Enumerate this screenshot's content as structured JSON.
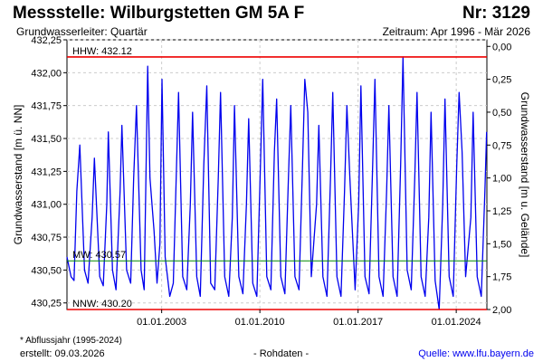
{
  "header": {
    "title": "Messstelle: Wilburgstetten GM 5A F",
    "number": "Nr: 3129",
    "aquifer": "Grundwasserleiter: Quartär",
    "period": "Zeitraum: Apr 1996 - Mär 2026"
  },
  "footer": {
    "footnote": "* Abflussjahr (1995-2024)",
    "created": "erstellt:  09.03.2026",
    "data_type": "- Rohdaten -",
    "source": "Quelle: www.lfu.bayern.de"
  },
  "colors": {
    "series": "#0000ee",
    "hhw": "#ee0000",
    "nnw": "#ee0000",
    "mw": "#008800",
    "grid": "#cccccc"
  },
  "chart_data": {
    "type": "line",
    "ylabel": "Grundwasserstand [m ü. NN]",
    "ylabel_right": "Grundwasserstand [m u. Gelände]",
    "ylim": [
      430.2,
      432.25
    ],
    "y_ticks": [
      "432,25",
      "432,00",
      "431,75",
      "431,50",
      "431,25",
      "431,00",
      "430,75",
      "430,50",
      "430,25"
    ],
    "y_tick_values": [
      432.25,
      432.0,
      431.75,
      431.5,
      431.25,
      431.0,
      430.75,
      430.5,
      430.25
    ],
    "y2_ticks": [
      "0,00",
      "0,25",
      "0,50",
      "0,75",
      "1,00",
      "1,25",
      "1,50",
      "1,75",
      "2,00"
    ],
    "y2_tick_values": [
      0.0,
      0.25,
      0.5,
      0.75,
      1.0,
      1.25,
      1.5,
      1.75,
      2.0
    ],
    "y2_ground_level": 432.2,
    "xlim": [
      "1996-04-01",
      "2026-03-09"
    ],
    "x_ticks": [
      "01.01.2003",
      "01.01.2010",
      "01.01.2017",
      "01.01.2024"
    ],
    "x_tick_values": [
      "2003-01-01",
      "2010-01-01",
      "2017-01-01",
      "2024-01-01"
    ],
    "reference_lines": [
      {
        "name": "HHW",
        "label": "HHW: 432.12",
        "value": 432.12
      },
      {
        "name": "MW",
        "label": "MW: 430.57",
        "value": 430.57
      },
      {
        "name": "NNW",
        "label": "NNW: 430.20",
        "value": 430.2
      }
    ],
    "series": [
      {
        "x": [
          "1996-04-01",
          "1996-07-15",
          "1996-10-01",
          "1996-12-15",
          "1997-03-01",
          "1997-07-01",
          "1997-10-01",
          "1998-01-15",
          "1998-03-15",
          "1998-08-01",
          "1998-11-01",
          "1999-02-01",
          "1999-03-15",
          "1999-07-01",
          "1999-10-01",
          "2000-01-15",
          "2000-03-01",
          "2000-07-01",
          "2000-10-15",
          "2001-01-01",
          "2001-03-15",
          "2001-07-15",
          "2001-10-01",
          "2002-01-01",
          "2002-03-01",
          "2002-06-15",
          "2002-09-01",
          "2002-11-15",
          "2003-01-10",
          "2003-04-01",
          "2003-08-01",
          "2003-11-01",
          "2004-01-15",
          "2004-03-15",
          "2004-07-01",
          "2004-10-15",
          "2005-01-15",
          "2005-03-15",
          "2005-07-01",
          "2005-10-01",
          "2006-01-01",
          "2006-03-20",
          "2006-07-01",
          "2006-10-15",
          "2007-01-15",
          "2007-03-15",
          "2007-07-01",
          "2007-10-15",
          "2008-01-15",
          "2008-03-10",
          "2008-07-01",
          "2008-10-15",
          "2009-01-15",
          "2009-03-15",
          "2009-07-01",
          "2009-10-15",
          "2010-01-15",
          "2010-03-15",
          "2010-07-01",
          "2010-10-15",
          "2011-01-15",
          "2011-03-15",
          "2011-07-01",
          "2011-10-15",
          "2012-01-15",
          "2012-03-15",
          "2012-07-01",
          "2012-10-15",
          "2013-01-15",
          "2013-03-15",
          "2013-06-01",
          "2013-09-01",
          "2014-01-15",
          "2014-03-15",
          "2014-07-01",
          "2014-10-15",
          "2015-01-15",
          "2015-03-15",
          "2015-07-01",
          "2015-10-15",
          "2016-01-15",
          "2016-03-15",
          "2016-06-01",
          "2016-10-15",
          "2017-01-15",
          "2017-03-15",
          "2017-07-01",
          "2017-10-15",
          "2018-01-15",
          "2018-03-15",
          "2018-07-01",
          "2018-10-15",
          "2019-01-15",
          "2019-03-15",
          "2019-07-01",
          "2019-10-15",
          "2020-01-15",
          "2020-03-15",
          "2020-07-01",
          "2020-10-15",
          "2021-01-15",
          "2021-03-15",
          "2021-07-01",
          "2021-10-15",
          "2022-01-15",
          "2022-03-15",
          "2022-07-01",
          "2022-10-15",
          "2023-01-15",
          "2023-03-15",
          "2023-07-01",
          "2023-10-15",
          "2024-01-15",
          "2024-03-15",
          "2024-06-01",
          "2024-09-01",
          "2025-01-15",
          "2025-03-15",
          "2025-07-01",
          "2025-10-15",
          "2026-01-15",
          "2026-03-01"
        ],
        "y": [
          430.6,
          430.45,
          430.42,
          431.1,
          431.45,
          430.5,
          430.4,
          430.9,
          431.35,
          430.45,
          430.38,
          431.0,
          431.55,
          430.5,
          430.35,
          431.1,
          431.6,
          430.5,
          430.4,
          431.2,
          431.75,
          430.5,
          430.35,
          432.05,
          431.2,
          430.8,
          430.4,
          430.7,
          431.95,
          430.6,
          430.3,
          430.4,
          431.2,
          431.85,
          430.45,
          430.35,
          431.0,
          431.7,
          430.45,
          430.3,
          431.3,
          431.9,
          430.4,
          430.35,
          431.2,
          431.85,
          430.45,
          430.3,
          430.9,
          431.75,
          430.45,
          430.32,
          431.0,
          431.65,
          430.4,
          430.3,
          431.3,
          431.95,
          430.45,
          430.35,
          431.4,
          431.8,
          430.45,
          430.32,
          431.2,
          431.75,
          430.45,
          430.35,
          431.3,
          431.95,
          431.7,
          430.45,
          431.0,
          431.6,
          430.45,
          430.3,
          431.2,
          431.85,
          430.45,
          430.3,
          431.1,
          431.75,
          431.2,
          430.35,
          431.0,
          431.9,
          430.45,
          430.32,
          431.3,
          431.95,
          430.45,
          430.3,
          431.1,
          431.75,
          430.45,
          430.3,
          431.3,
          432.12,
          430.5,
          430.35,
          431.2,
          431.85,
          430.45,
          430.3,
          430.9,
          431.7,
          430.42,
          430.2,
          431.0,
          431.8,
          430.45,
          430.3,
          431.3,
          431.85,
          431.4,
          430.45,
          430.9,
          431.7,
          430.45,
          430.3,
          431.1,
          431.55
        ]
      }
    ]
  }
}
